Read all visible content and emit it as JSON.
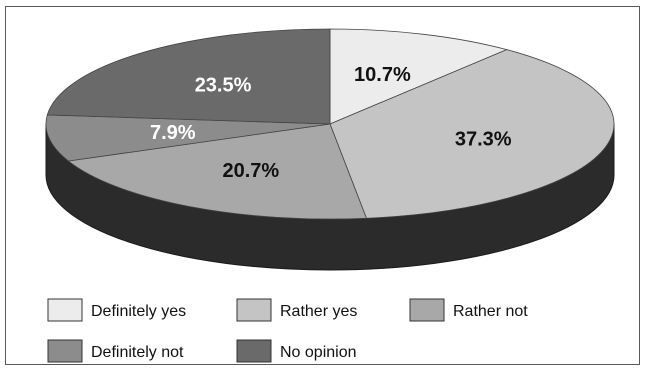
{
  "chart_data": {
    "type": "pie",
    "style": "3d",
    "categories": [
      "Definitely yes",
      "Rather yes",
      "Rather not",
      "Definitely not",
      "No opinion"
    ],
    "values": [
      10.7,
      37.3,
      20.7,
      7.9,
      23.5
    ],
    "value_labels": [
      "10.7%",
      "37.3%",
      "20.7%",
      "7.9%",
      "23.5%"
    ],
    "colors": [
      "#ececec",
      "#c4c4c4",
      "#a8a8a8",
      "#8c8c8c",
      "#6a6a6a"
    ],
    "legend": {
      "position": "bottom",
      "entries": [
        "Definitely yes",
        "Rather yes",
        "Rather not",
        "Definitely not",
        "No opinion"
      ]
    }
  }
}
